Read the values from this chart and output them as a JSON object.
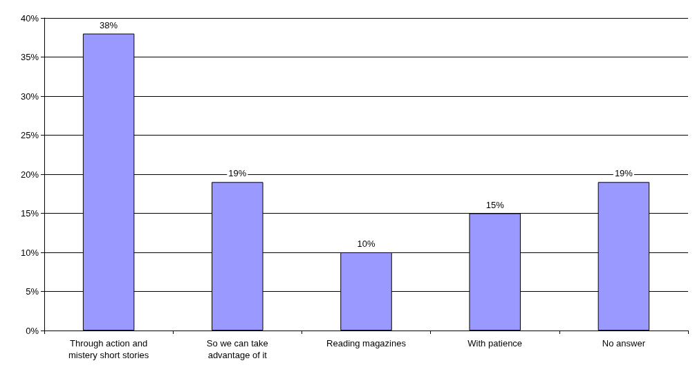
{
  "chart_data": {
    "type": "bar",
    "categories": [
      "Through action and\nmistery short stories",
      "So we can take\nadvantage of it",
      "Reading magazines",
      "With patience",
      "No answer"
    ],
    "values": [
      38,
      19,
      10,
      15,
      19
    ],
    "value_labels": [
      "38%",
      "19%",
      "10%",
      "15%",
      "19%"
    ],
    "color": "#9999ff",
    "ylim": [
      0,
      40
    ],
    "yticks": [
      {
        "value": 0,
        "label": "0%"
      },
      {
        "value": 5,
        "label": "5%"
      },
      {
        "value": 10,
        "label": "10%"
      },
      {
        "value": 15,
        "label": "15%"
      },
      {
        "value": 20,
        "label": "20%"
      },
      {
        "value": 25,
        "label": "25%"
      },
      {
        "value": 30,
        "label": "30%"
      },
      {
        "value": 35,
        "label": "35%"
      },
      {
        "value": 40,
        "label": "40%"
      }
    ],
    "grid": "y"
  }
}
